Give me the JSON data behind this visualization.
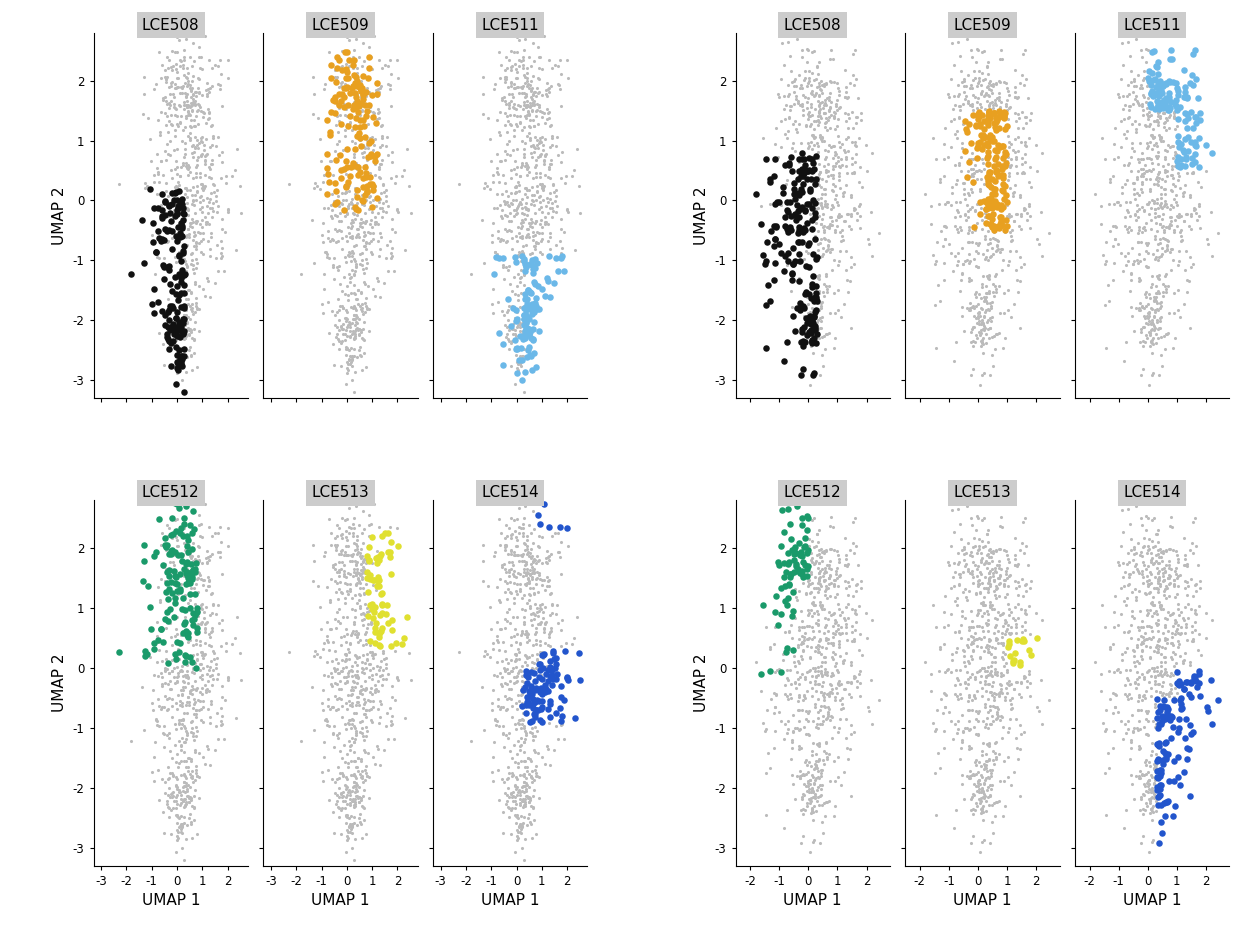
{
  "plates": [
    "LCE508",
    "LCE509",
    "LCE511",
    "LCE512",
    "LCE513",
    "LCE514"
  ],
  "colors": [
    "#111111",
    "#E8A020",
    "#6BB8E8",
    "#1A9A6A",
    "#E0E030",
    "#2255CC"
  ],
  "gray_color": "#BBBBBB",
  "gray_size": 5,
  "fg_size": 22,
  "background_color": "#FFFFFF",
  "strip_bg_color": "#CCCCCC",
  "xlabel": "UMAP 1",
  "ylabel": "UMAP 2",
  "xlim_left": [
    -3.3,
    2.8
  ],
  "ylim_left": [
    -3.3,
    2.8
  ],
  "xticks_left": [
    -3,
    -2,
    -1,
    0,
    1,
    2
  ],
  "xlim_right": [
    -2.5,
    2.8
  ],
  "ylim_right": [
    -3.3,
    2.8
  ],
  "xticks_right": [
    -2,
    -1,
    0,
    1,
    2
  ],
  "yticks": [
    -3,
    -2,
    -1,
    0,
    1,
    2
  ],
  "n_total": 700,
  "n_per_plate_left": [
    160,
    150,
    140,
    140,
    140,
    130
  ],
  "n_per_plate_right": [
    200,
    180,
    160,
    150,
    150,
    150
  ]
}
